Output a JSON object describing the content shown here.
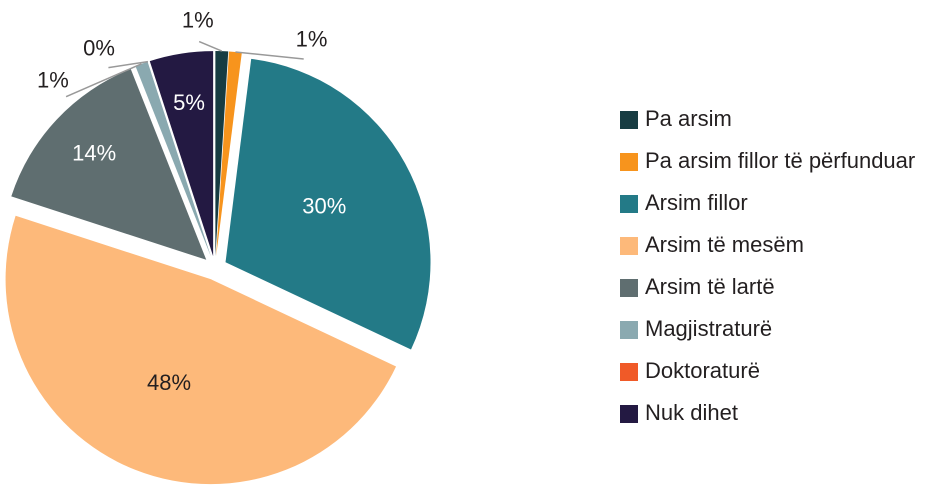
{
  "chart_data": {
    "type": "pie",
    "categories": [
      "Pa arsim",
      "Pa arsim fillor të përfunduar",
      "Arsim fillor",
      "Arsim të mesëm",
      "Arsim të lartë",
      "Magjistraturë",
      "Doktoraturë",
      "Nuk dihet"
    ],
    "values": [
      1,
      1,
      30,
      48,
      14,
      1,
      0,
      5
    ],
    "value_labels": [
      "1%",
      "1%",
      "30%",
      "48%",
      "14%",
      "1%",
      "0%",
      "5%"
    ],
    "colors": [
      "#173c42",
      "#f7941d",
      "#237a87",
      "#fdb97a",
      "#5f6e70",
      "#8aa9b0",
      "#f05a28",
      "#231942"
    ],
    "legend": "right"
  }
}
